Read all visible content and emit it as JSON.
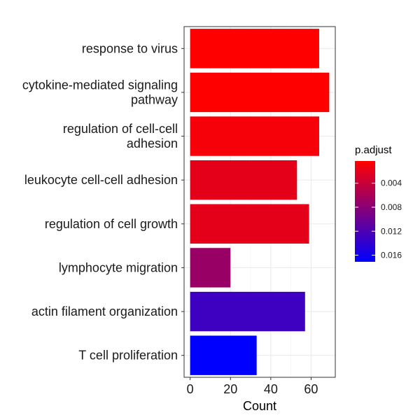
{
  "chart_data": {
    "type": "bar",
    "orientation": "horizontal",
    "categories": [
      "response to virus",
      "cytokine-mediated signaling pathway",
      "regulation of cell-cell adhesion",
      "leukocyte cell-cell adhesion",
      "regulation of cell growth",
      "lymphocyte migration",
      "actin filament organization",
      "T cell proliferation"
    ],
    "category_lines": [
      [
        "response to virus"
      ],
      [
        "cytokine-mediated signaling",
        "pathway"
      ],
      [
        "regulation of cell-cell",
        "adhesion"
      ],
      [
        "leukocyte cell-cell adhesion"
      ],
      [
        "regulation of cell growth"
      ],
      [
        "lymphocyte migration"
      ],
      [
        "actin filament organization"
      ],
      [
        "T cell proliferation"
      ]
    ],
    "values": [
      64,
      69,
      64,
      53,
      59,
      20,
      57,
      33
    ],
    "p_adjust": [
      0.0003,
      0.0003,
      0.0009,
      0.002,
      0.002,
      0.007,
      0.013,
      0.0171
    ],
    "xlabel": "Count",
    "ylabel": "",
    "xlim": [
      -3,
      72
    ],
    "x_ticks": [
      0,
      20,
      40,
      60
    ],
    "x_tick_labels": [
      "0",
      "20",
      "40",
      "60"
    ],
    "grid": true,
    "colorbar": {
      "title": "p.adjust",
      "range": [
        0.0003,
        0.0171
      ],
      "low_color": "#ff0000",
      "high_color": "#0000ff",
      "ticks": [
        0.004,
        0.008,
        0.012,
        0.016
      ],
      "tick_labels": [
        "0.004",
        "0.008",
        "0.012",
        "0.016"
      ]
    },
    "legend_position": "right"
  }
}
